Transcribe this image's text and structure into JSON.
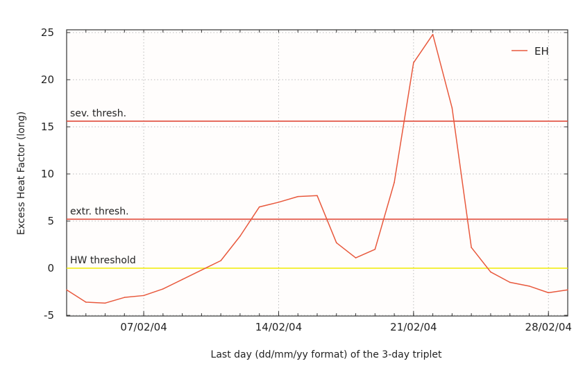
{
  "chart_data": {
    "type": "line",
    "title": "",
    "xlabel": "Last day (dd/mm/yy format) of the 3-day triplet",
    "ylabel": "Excess Heat Factor (long)",
    "x_range": [
      "03/02/04",
      "29/02/04"
    ],
    "ylim": [
      -5,
      25
    ],
    "y_ticks": [
      "-5",
      "0",
      "5",
      "10",
      "15",
      "20",
      "25"
    ],
    "x_tick_labels": [
      {
        "date": "07/02/04",
        "label": "07/02/04"
      },
      {
        "date": "14/02/04",
        "label": "14/02/04"
      },
      {
        "date": "21/02/04",
        "label": "21/02/04"
      },
      {
        "date": "28/02/04",
        "label": "28/02/04"
      }
    ],
    "grid": true,
    "legend_position": "top-right",
    "series": [
      {
        "name": "EH",
        "color": "#e8583c",
        "x": [
          "03/02/04",
          "04/02/04",
          "05/02/04",
          "06/02/04",
          "07/02/04",
          "08/02/04",
          "09/02/04",
          "10/02/04",
          "11/02/04",
          "12/02/04",
          "13/02/04",
          "14/02/04",
          "15/02/04",
          "16/02/04",
          "17/02/04",
          "18/02/04",
          "19/02/04",
          "20/02/04",
          "21/02/04",
          "22/02/04",
          "23/02/04",
          "24/02/04",
          "25/02/04",
          "26/02/04",
          "27/02/04",
          "28/02/04",
          "29/02/04"
        ],
        "values": [
          -2.3,
          -3.6,
          -3.7,
          -3.1,
          -2.9,
          -2.2,
          -1.2,
          -0.2,
          0.8,
          3.4,
          6.5,
          7.0,
          7.6,
          7.7,
          2.7,
          1.1,
          2.0,
          9.1,
          21.8,
          24.8,
          17.0,
          2.2,
          -0.4,
          -1.5,
          -1.9,
          -2.6,
          -2.3
        ]
      }
    ],
    "thresholds": [
      {
        "label": "sev. thresh.",
        "value": 15.6,
        "color": "#e04a3a"
      },
      {
        "label": "extr. thresh.",
        "value": 5.2,
        "color": "#e04a3a"
      },
      {
        "label": "HW threshold",
        "value": 0,
        "color": "#f0ec00"
      }
    ]
  }
}
